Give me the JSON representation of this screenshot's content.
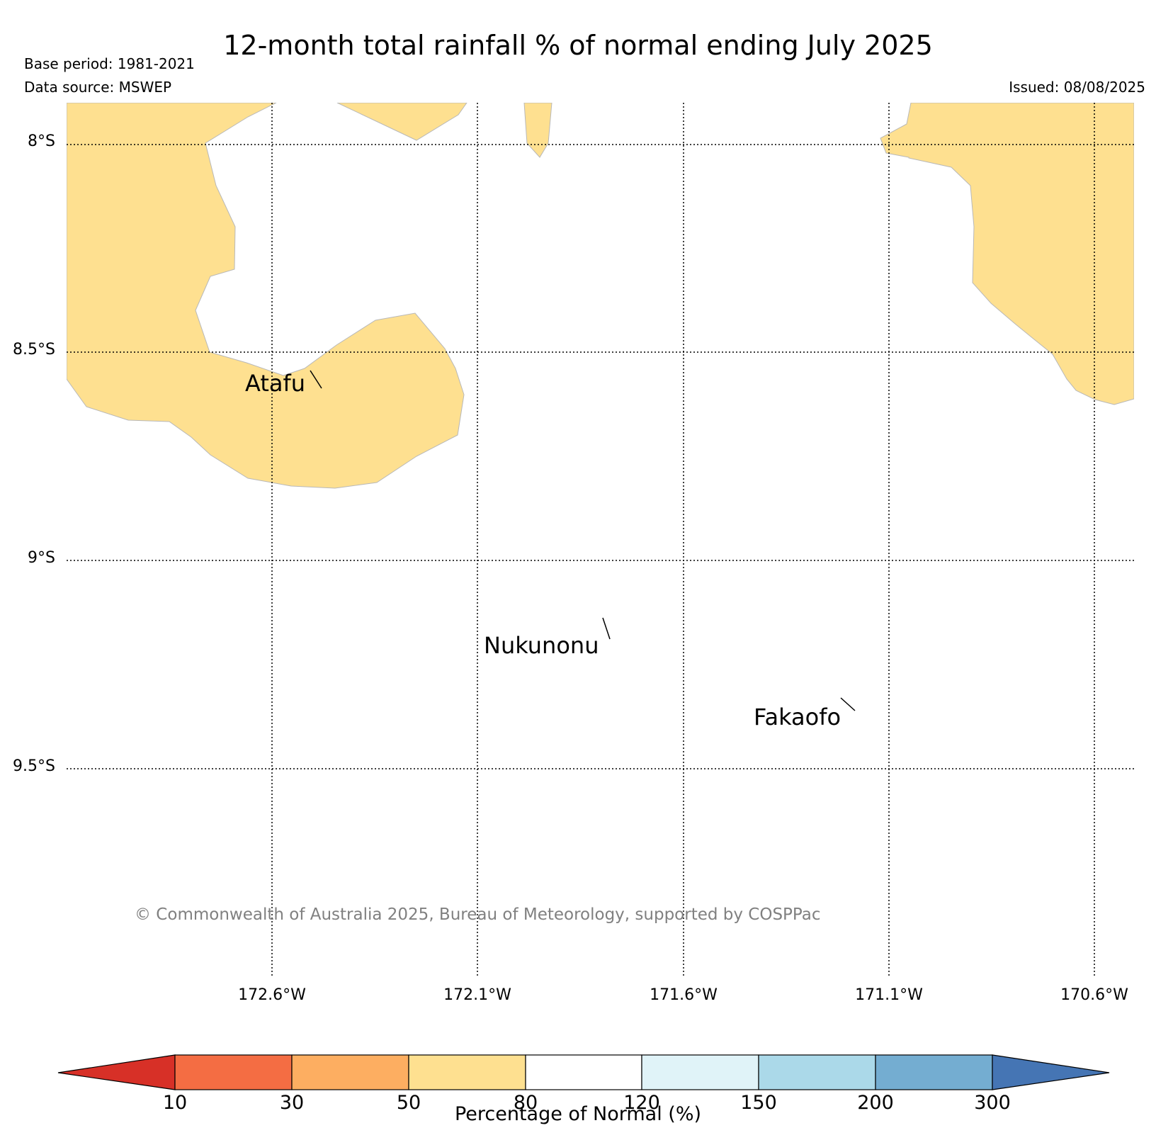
{
  "title": "12-month total rainfall % of normal ending July 2025",
  "base_period": "Base period: 1981-2021",
  "data_source": "Data source: MSWEP",
  "issued": "Issued: 08/08/2025",
  "copyright": "© Commonwealth of Australia 2025, Bureau of Meteorology, supported by COSPPac",
  "lat_labels": [
    "8°S",
    "8.5°S",
    "9°S",
    "9.5°S"
  ],
  "lon_labels": [
    "172.6°W",
    "172.1°W",
    "171.6°W",
    "171.1°W",
    "170.6°W"
  ],
  "places": [
    "Atafu",
    "Nukunonu",
    "Fakaofo"
  ],
  "colorbar": {
    "label": "Percentage of Normal (%)",
    "ticks": [
      "10",
      "30",
      "50",
      "80",
      "120",
      "150",
      "200",
      "300"
    ],
    "colors": [
      "#d73027",
      "#f46d43",
      "#fdae61",
      "#fee090",
      "#ffffff",
      "#e0f3f8",
      "#abd9e9",
      "#74add1",
      "#4575b4"
    ]
  },
  "map_fill_color": "#fee090",
  "chart_data": {
    "type": "map",
    "title": "12-month total rainfall % of normal ending July 2025",
    "xlabel": "",
    "ylabel": "",
    "lon_range": [
      -173.1,
      -170.5
    ],
    "lat_range": [
      -10.0,
      -7.9
    ],
    "lat_ticks": [
      -8.0,
      -8.5,
      -9.0,
      -9.5
    ],
    "lon_ticks": [
      -172.6,
      -172.1,
      -171.6,
      -171.1,
      -170.6
    ],
    "grid": true,
    "category_shown": "50-80",
    "places": [
      {
        "name": "Atafu",
        "lon": -172.5,
        "lat": -8.55
      },
      {
        "name": "Nukunonu",
        "lon": -171.8,
        "lat": -9.17
      },
      {
        "name": "Fakaofo",
        "lon": -171.2,
        "lat": -9.37
      }
    ]
  }
}
